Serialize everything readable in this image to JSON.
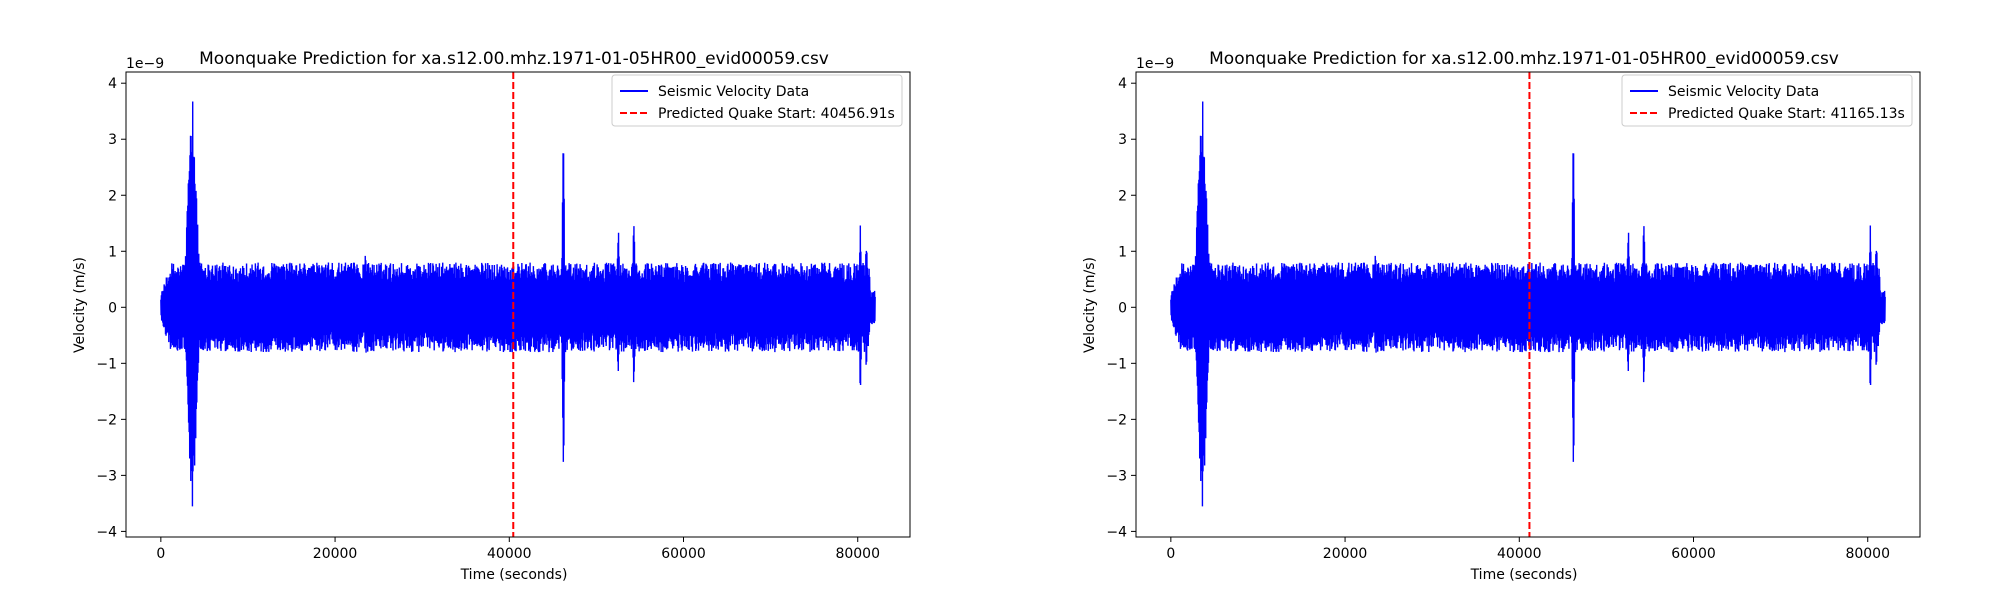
{
  "chart_data": [
    {
      "type": "line",
      "title": "Moonquake Prediction for xa.s12.00.mhz.1971-01-05HR00_evid00059.csv",
      "xlabel": "Time (seconds)",
      "ylabel": "Velocity (m/s)",
      "y_offset_text": "1e−9",
      "xlim": [
        -4000,
        86000
      ],
      "ylim": [
        -4.1e-09,
        4.2e-09
      ],
      "xticks": [
        0,
        20000,
        40000,
        60000,
        80000
      ],
      "xtick_labels": [
        "0",
        "20000",
        "40000",
        "60000",
        "80000"
      ],
      "yticks": [
        -4,
        -3,
        -2,
        -1,
        0,
        1,
        2,
        3,
        4
      ],
      "ytick_labels": [
        "−4",
        "−3",
        "−2",
        "−1",
        "0",
        "1",
        "2",
        "3",
        "4"
      ],
      "legend_position": "top-right",
      "series": [
        {
          "name": "Seismic Velocity Data",
          "color": "#0000ff",
          "style": "solid",
          "x_range": [
            0,
            82000
          ],
          "background_amplitude": 8e-10,
          "events": [
            {
              "t": 3600,
              "peak": 3.8e-09,
              "trough": -3.7e-09
            },
            {
              "t": 23500,
              "peak": 1.15e-09,
              "trough": -1e-09
            },
            {
              "t": 46200,
              "peak": 2.95e-09,
              "trough": -3.1e-09
            },
            {
              "t": 52500,
              "peak": 1.55e-09,
              "trough": -1.4e-09
            },
            {
              "t": 54300,
              "peak": 1.5e-09,
              "trough": -1.4e-09
            },
            {
              "t": 80300,
              "peak": 1.55e-09,
              "trough": -1.5e-09
            },
            {
              "t": 81000,
              "peak": 1.35e-09,
              "trough": -1.25e-09
            }
          ]
        },
        {
          "name": "Predicted Quake Start: 40456.91s",
          "color": "#ff0000",
          "style": "dashed",
          "x": 40456.91
        }
      ]
    },
    {
      "type": "line",
      "title": "Moonquake Prediction for xa.s12.00.mhz.1971-01-05HR00_evid00059.csv",
      "xlabel": "Time (seconds)",
      "ylabel": "Velocity (m/s)",
      "y_offset_text": "1e−9",
      "xlim": [
        -4000,
        86000
      ],
      "ylim": [
        -4.1e-09,
        4.2e-09
      ],
      "xticks": [
        0,
        20000,
        40000,
        60000,
        80000
      ],
      "xtick_labels": [
        "0",
        "20000",
        "40000",
        "60000",
        "80000"
      ],
      "yticks": [
        -4,
        -3,
        -2,
        -1,
        0,
        1,
        2,
        3,
        4
      ],
      "ytick_labels": [
        "−4",
        "−3",
        "−2",
        "−1",
        "0",
        "1",
        "2",
        "3",
        "4"
      ],
      "legend_position": "top-right",
      "series": [
        {
          "name": "Seismic Velocity Data",
          "color": "#0000ff",
          "style": "solid",
          "x_range": [
            0,
            82000
          ],
          "background_amplitude": 8e-10,
          "events": [
            {
              "t": 3600,
              "peak": 3.8e-09,
              "trough": -3.7e-09
            },
            {
              "t": 23500,
              "peak": 1.15e-09,
              "trough": -1e-09
            },
            {
              "t": 46200,
              "peak": 2.95e-09,
              "trough": -3.1e-09
            },
            {
              "t": 52500,
              "peak": 1.55e-09,
              "trough": -1.4e-09
            },
            {
              "t": 54300,
              "peak": 1.5e-09,
              "trough": -1.4e-09
            },
            {
              "t": 80300,
              "peak": 1.55e-09,
              "trough": -1.5e-09
            },
            {
              "t": 81000,
              "peak": 1.35e-09,
              "trough": -1.25e-09
            }
          ]
        },
        {
          "name": "Predicted Quake Start: 41165.13s",
          "color": "#ff0000",
          "style": "dashed",
          "x": 41165.13
        }
      ]
    }
  ]
}
